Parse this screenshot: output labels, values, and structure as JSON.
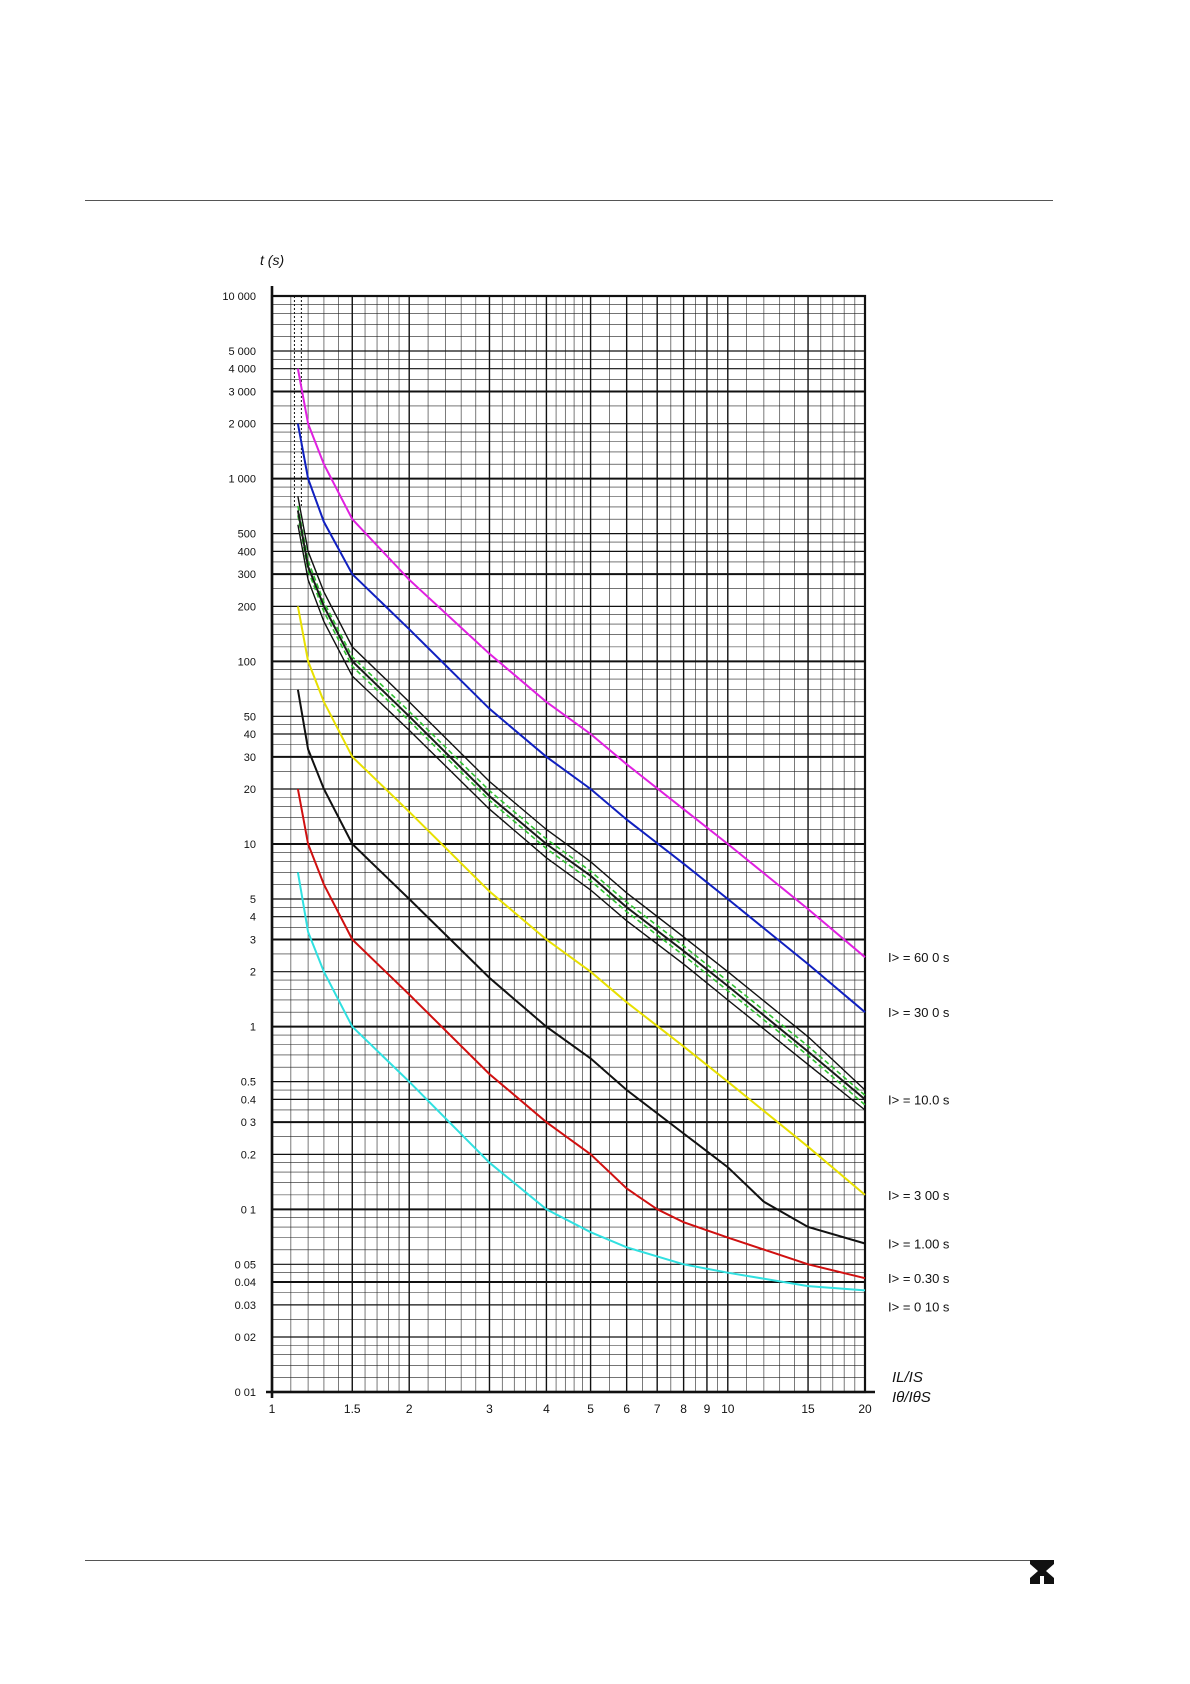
{
  "chart_data": {
    "type": "line",
    "x_scale": "log",
    "y_scale": "log",
    "xlim": [
      1,
      20
    ],
    "ylim": [
      0.01,
      10000
    ],
    "y_axis_label": "t (s)",
    "x_axis_label_top": "IL/IS",
    "x_axis_label_bottom": "Iθ/IθS",
    "x_ticks": [
      {
        "v": 1,
        "label": "1"
      },
      {
        "v": 1.5,
        "label": "1.5"
      },
      {
        "v": 2,
        "label": "2"
      },
      {
        "v": 3,
        "label": "3"
      },
      {
        "v": 4,
        "label": "4"
      },
      {
        "v": 5,
        "label": "5"
      },
      {
        "v": 6,
        "label": "6"
      },
      {
        "v": 7,
        "label": "7"
      },
      {
        "v": 8,
        "label": "8"
      },
      {
        "v": 9,
        "label": "9"
      },
      {
        "v": 10,
        "label": "10"
      },
      {
        "v": 15,
        "label": "15"
      },
      {
        "v": 20,
        "label": "20"
      }
    ],
    "y_ticks": [
      {
        "v": 10000,
        "label": "10 000"
      },
      {
        "v": 5000,
        "label": "5 000"
      },
      {
        "v": 4000,
        "label": "4 000"
      },
      {
        "v": 3000,
        "label": "3 000"
      },
      {
        "v": 2000,
        "label": "2 000"
      },
      {
        "v": 1000,
        "label": "1 000"
      },
      {
        "v": 500,
        "label": "500"
      },
      {
        "v": 400,
        "label": "400"
      },
      {
        "v": 300,
        "label": "300"
      },
      {
        "v": 200,
        "label": "200"
      },
      {
        "v": 100,
        "label": "100"
      },
      {
        "v": 50,
        "label": "50"
      },
      {
        "v": 40,
        "label": "40"
      },
      {
        "v": 30,
        "label": "30"
      },
      {
        "v": 20,
        "label": "20"
      },
      {
        "v": 10,
        "label": "10"
      },
      {
        "v": 5,
        "label": "5"
      },
      {
        "v": 4,
        "label": "4"
      },
      {
        "v": 3,
        "label": "3"
      },
      {
        "v": 2,
        "label": "2"
      },
      {
        "v": 1,
        "label": "1"
      },
      {
        "v": 0.5,
        "label": "0.5"
      },
      {
        "v": 0.4,
        "label": "0.4"
      },
      {
        "v": 0.3,
        "label": "0 3"
      },
      {
        "v": 0.2,
        "label": "0.2"
      },
      {
        "v": 0.1,
        "label": "0 1"
      },
      {
        "v": 0.05,
        "label": "0 05"
      },
      {
        "v": 0.04,
        "label": "0.04"
      },
      {
        "v": 0.03,
        "label": "0.03"
      },
      {
        "v": 0.02,
        "label": "0 02"
      },
      {
        "v": 0.01,
        "label": "0 01"
      }
    ],
    "grid": true,
    "series": [
      {
        "name": "I> = 60.0 s",
        "label_text": "I>  =  60 0  s",
        "color": "#e020e0",
        "x": [
          1.14,
          1.2,
          1.3,
          1.5,
          2,
          3,
          4,
          5,
          6,
          8,
          10,
          15,
          20
        ],
        "y": [
          4000,
          2000,
          1200,
          600,
          280,
          110,
          60,
          40,
          27.3,
          15.5,
          10,
          4.4,
          2.4
        ]
      },
      {
        "name": "I> = 30.0 s",
        "label_text": "I>  =  30 0  s",
        "color": "#1020c0",
        "x": [
          1.14,
          1.2,
          1.3,
          1.5,
          2,
          3,
          4,
          5,
          6,
          8,
          10,
          15,
          20
        ],
        "y": [
          2000,
          1000,
          580,
          300,
          150,
          55,
          30,
          20,
          13.6,
          7.8,
          5,
          2.2,
          1.2
        ]
      },
      {
        "name": "I> = 10.0 s",
        "label_text": "I>  =  10.0  s",
        "color": "#1a1a1a",
        "x": [
          1.14,
          1.2,
          1.3,
          1.5,
          2,
          3,
          4,
          5,
          6,
          8,
          10,
          15,
          20
        ],
        "y": [
          670,
          330,
          200,
          100,
          50,
          18.3,
          10,
          6.7,
          4.5,
          2.6,
          1.67,
          0.73,
          0.4
        ]
      },
      {
        "name": "I> = 3.00 s",
        "label_text": "I>  =  3 00  s",
        "color": "#e8e000",
        "x": [
          1.14,
          1.2,
          1.3,
          1.5,
          2,
          3,
          4,
          5,
          6,
          8,
          10,
          15,
          20
        ],
        "y": [
          200,
          100,
          60,
          30,
          15,
          5.5,
          3,
          2,
          1.36,
          0.78,
          0.5,
          0.22,
          0.12
        ]
      },
      {
        "name": "I> = 1.00 s",
        "label_text": "I>  =  1.00  s",
        "color": "#111111",
        "x": [
          1.14,
          1.2,
          1.3,
          1.5,
          2,
          3,
          4,
          5,
          6,
          8,
          10,
          12,
          15,
          20
        ],
        "y": [
          70,
          33,
          20,
          10,
          5,
          1.85,
          1,
          0.67,
          0.45,
          0.26,
          0.17,
          0.11,
          0.08,
          0.065
        ]
      },
      {
        "name": "I> = 0.30 s",
        "label_text": "I>  =  0.30  s",
        "color": "#d01010",
        "x": [
          1.14,
          1.2,
          1.3,
          1.5,
          2,
          3,
          4,
          5,
          6,
          7,
          8,
          10,
          15,
          20
        ],
        "y": [
          20,
          10,
          6,
          3,
          1.5,
          0.55,
          0.3,
          0.2,
          0.13,
          0.1,
          0.085,
          0.07,
          0.05,
          0.042
        ]
      },
      {
        "name": "I> = 0.10 s",
        "label_text": "I>  =  0 10  s",
        "color": "#30e0e0",
        "x": [
          1.14,
          1.2,
          1.3,
          1.5,
          2,
          3,
          4,
          5,
          6,
          8,
          10,
          15,
          20
        ],
        "y": [
          7,
          3.3,
          2,
          1,
          0.5,
          0.18,
          0.1,
          0.075,
          0.062,
          0.05,
          0.045,
          0.038,
          0.036
        ]
      }
    ],
    "band": {
      "color": "#30c030",
      "x": [
        1.14,
        1.2,
        1.3,
        1.5,
        2,
        3,
        4,
        5,
        6,
        8,
        10,
        15,
        20
      ],
      "upper": [
        800,
        400,
        240,
        120,
        60,
        22,
        12,
        8,
        5.4,
        3.1,
        2,
        0.88,
        0.45
      ],
      "lower": [
        560,
        280,
        165,
        83,
        42,
        15.5,
        8.4,
        5.6,
        3.8,
        2.2,
        1.4,
        0.62,
        0.35
      ]
    }
  }
}
